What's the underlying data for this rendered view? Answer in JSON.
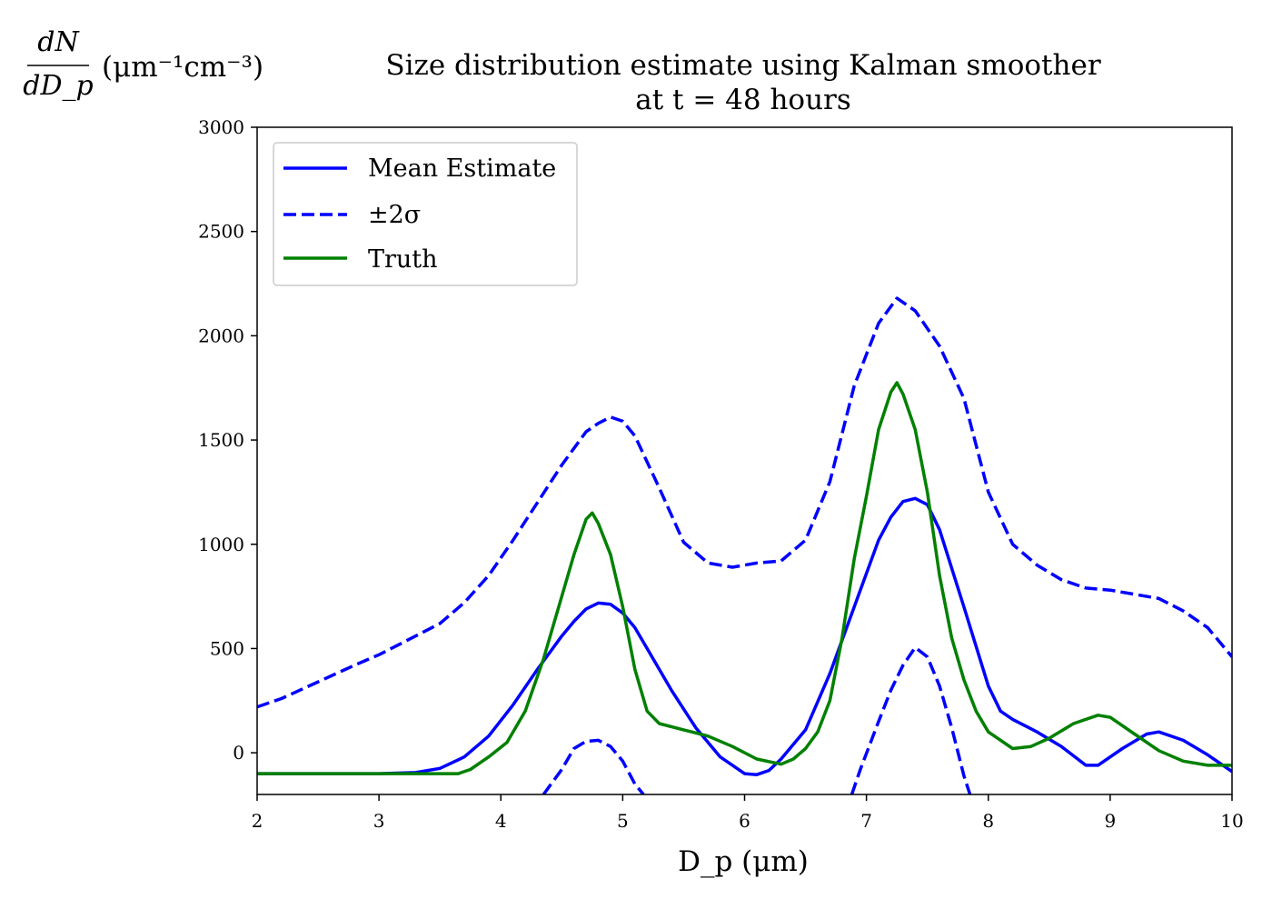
{
  "chart_data": {
    "type": "line",
    "title_lines": [
      "Size distribution estimate using Kalman smoother",
      "at t = 48 hours"
    ],
    "xlabel": "D_p (μm)",
    "ylabel_numerator": "dN",
    "ylabel_denominator": "dD_p",
    "ylabel_units": "(μm⁻¹cm⁻³)",
    "xlim": [
      2,
      10
    ],
    "ylim": [
      -200,
      3000
    ],
    "xticks": [
      2,
      3,
      4,
      5,
      6,
      7,
      8,
      9,
      10
    ],
    "yticks": [
      0,
      500,
      1000,
      1500,
      2000,
      2500,
      3000
    ],
    "grid": false,
    "legend_position": "top-left",
    "colors": {
      "mean": "#0000ff",
      "truth": "#008000",
      "axes": "#000000"
    },
    "series": [
      {
        "name": "Mean Estimate",
        "style": "solid",
        "color": "#0000ff",
        "points": [
          [
            2.0,
            -100
          ],
          [
            2.5,
            -100
          ],
          [
            3.0,
            -100
          ],
          [
            3.3,
            -95
          ],
          [
            3.5,
            -75
          ],
          [
            3.7,
            -20
          ],
          [
            3.9,
            80
          ],
          [
            4.1,
            230
          ],
          [
            4.3,
            400
          ],
          [
            4.5,
            560
          ],
          [
            4.6,
            630
          ],
          [
            4.7,
            690
          ],
          [
            4.8,
            718
          ],
          [
            4.9,
            712
          ],
          [
            5.0,
            670
          ],
          [
            5.1,
            600
          ],
          [
            5.2,
            500
          ],
          [
            5.4,
            300
          ],
          [
            5.6,
            120
          ],
          [
            5.8,
            -20
          ],
          [
            6.0,
            -100
          ],
          [
            6.1,
            -105
          ],
          [
            6.2,
            -85
          ],
          [
            6.3,
            -30
          ],
          [
            6.5,
            110
          ],
          [
            6.7,
            380
          ],
          [
            6.9,
            700
          ],
          [
            7.1,
            1020
          ],
          [
            7.2,
            1130
          ],
          [
            7.3,
            1205
          ],
          [
            7.4,
            1220
          ],
          [
            7.5,
            1190
          ],
          [
            7.6,
            1070
          ],
          [
            7.8,
            700
          ],
          [
            8.0,
            320
          ],
          [
            8.1,
            200
          ],
          [
            8.2,
            160
          ],
          [
            8.4,
            100
          ],
          [
            8.6,
            30
          ],
          [
            8.8,
            -60
          ],
          [
            8.9,
            -60
          ],
          [
            9.1,
            20
          ],
          [
            9.3,
            90
          ],
          [
            9.4,
            100
          ],
          [
            9.6,
            60
          ],
          [
            9.8,
            -10
          ],
          [
            10.0,
            -90
          ]
        ]
      },
      {
        "name": "±2σ",
        "style": "dashed",
        "color": "#0000ff",
        "points": [
          [
            2.0,
            220
          ],
          [
            2.2,
            260
          ],
          [
            2.5,
            340
          ],
          [
            2.8,
            420
          ],
          [
            3.0,
            470
          ],
          [
            3.2,
            530
          ],
          [
            3.5,
            620
          ],
          [
            3.7,
            720
          ],
          [
            3.9,
            850
          ],
          [
            4.1,
            1020
          ],
          [
            4.3,
            1200
          ],
          [
            4.5,
            1380
          ],
          [
            4.7,
            1540
          ],
          [
            4.8,
            1580
          ],
          [
            4.9,
            1610
          ],
          [
            5.0,
            1590
          ],
          [
            5.1,
            1520
          ],
          [
            5.3,
            1270
          ],
          [
            5.5,
            1010
          ],
          [
            5.7,
            910
          ],
          [
            5.9,
            890
          ],
          [
            6.1,
            910
          ],
          [
            6.3,
            920
          ],
          [
            6.5,
            1020
          ],
          [
            6.7,
            1300
          ],
          [
            6.9,
            1760
          ],
          [
            7.1,
            2060
          ],
          [
            7.25,
            2180
          ],
          [
            7.4,
            2120
          ],
          [
            7.6,
            1950
          ],
          [
            7.8,
            1700
          ],
          [
            8.0,
            1250
          ],
          [
            8.2,
            1000
          ],
          [
            8.4,
            900
          ],
          [
            8.6,
            830
          ],
          [
            8.8,
            790
          ],
          [
            9.0,
            780
          ],
          [
            9.2,
            760
          ],
          [
            9.4,
            740
          ],
          [
            9.6,
            680
          ],
          [
            9.8,
            600
          ],
          [
            10.0,
            460
          ]
        ]
      },
      {
        "name": "",
        "style": "dashed",
        "color": "#0000ff",
        "points": [
          [
            4.35,
            -200
          ],
          [
            4.5,
            -80
          ],
          [
            4.6,
            20
          ],
          [
            4.7,
            55
          ],
          [
            4.8,
            60
          ],
          [
            4.9,
            30
          ],
          [
            5.0,
            -40
          ],
          [
            5.1,
            -150
          ],
          [
            5.17,
            -200
          ]
        ]
      },
      {
        "name": "",
        "style": "dashed",
        "color": "#0000ff",
        "points": [
          [
            6.88,
            -200
          ],
          [
            6.95,
            -80
          ],
          [
            7.1,
            150
          ],
          [
            7.2,
            300
          ],
          [
            7.3,
            420
          ],
          [
            7.4,
            505
          ],
          [
            7.5,
            460
          ],
          [
            7.6,
            320
          ],
          [
            7.7,
            120
          ],
          [
            7.8,
            -110
          ],
          [
            7.85,
            -200
          ]
        ]
      },
      {
        "name": "Truth",
        "style": "solid",
        "color": "#008000",
        "points": [
          [
            2.0,
            -100
          ],
          [
            2.5,
            -100
          ],
          [
            3.0,
            -100
          ],
          [
            3.5,
            -100
          ],
          [
            3.65,
            -100
          ],
          [
            3.75,
            -80
          ],
          [
            3.9,
            -20
          ],
          [
            4.05,
            50
          ],
          [
            4.2,
            200
          ],
          [
            4.35,
            450
          ],
          [
            4.5,
            750
          ],
          [
            4.6,
            950
          ],
          [
            4.7,
            1120
          ],
          [
            4.75,
            1150
          ],
          [
            4.8,
            1100
          ],
          [
            4.9,
            950
          ],
          [
            5.0,
            700
          ],
          [
            5.1,
            400
          ],
          [
            5.2,
            200
          ],
          [
            5.3,
            140
          ],
          [
            5.5,
            110
          ],
          [
            5.7,
            80
          ],
          [
            5.9,
            30
          ],
          [
            6.1,
            -30
          ],
          [
            6.3,
            -55
          ],
          [
            6.4,
            -30
          ],
          [
            6.5,
            20
          ],
          [
            6.6,
            100
          ],
          [
            6.7,
            250
          ],
          [
            6.8,
            550
          ],
          [
            6.9,
            930
          ],
          [
            7.0,
            1230
          ],
          [
            7.1,
            1550
          ],
          [
            7.2,
            1730
          ],
          [
            7.25,
            1775
          ],
          [
            7.3,
            1720
          ],
          [
            7.4,
            1550
          ],
          [
            7.5,
            1250
          ],
          [
            7.6,
            850
          ],
          [
            7.7,
            550
          ],
          [
            7.8,
            350
          ],
          [
            7.9,
            200
          ],
          [
            8.0,
            100
          ],
          [
            8.2,
            20
          ],
          [
            8.35,
            30
          ],
          [
            8.5,
            70
          ],
          [
            8.7,
            140
          ],
          [
            8.9,
            180
          ],
          [
            9.0,
            170
          ],
          [
            9.2,
            90
          ],
          [
            9.4,
            10
          ],
          [
            9.6,
            -40
          ],
          [
            9.8,
            -60
          ],
          [
            10.0,
            -60
          ]
        ]
      }
    ],
    "legend": [
      {
        "label": "Mean Estimate",
        "style": "solid",
        "color": "#0000ff"
      },
      {
        "label": "±2σ",
        "style": "dashed",
        "color": "#0000ff"
      },
      {
        "label": "Truth",
        "style": "solid",
        "color": "#008000"
      }
    ]
  }
}
